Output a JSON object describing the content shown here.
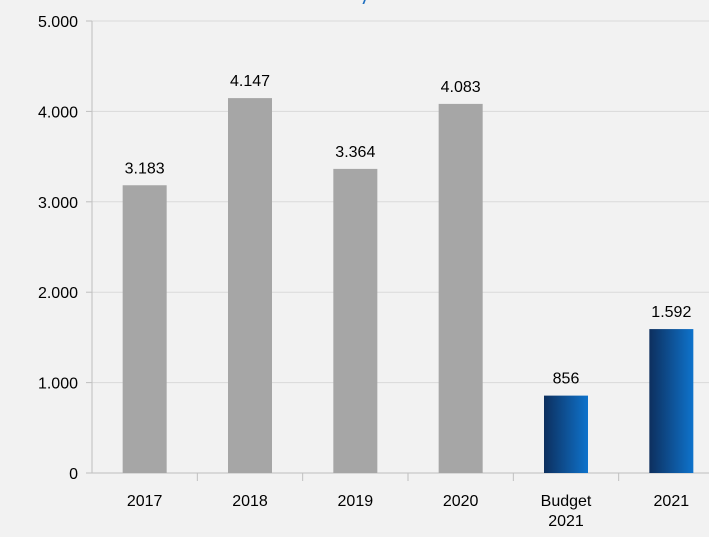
{
  "chart_data": {
    "type": "bar",
    "title": "",
    "title_fragment": "/",
    "xlabel": "",
    "ylabel": "",
    "ylim": [
      0,
      5000
    ],
    "y_ticks": [
      0,
      1000,
      2000,
      3000,
      4000,
      5000
    ],
    "y_tick_labels": [
      "0",
      "1.000",
      "2.000",
      "3.000",
      "4.000",
      "5.000"
    ],
    "grid": true,
    "categories": [
      [
        "2017"
      ],
      [
        "2018"
      ],
      [
        "2019"
      ],
      [
        "2020"
      ],
      [
        "Budget",
        "2021"
      ],
      [
        "2021"
      ]
    ],
    "values": [
      3183,
      4147,
      3364,
      4083,
      856,
      1592
    ],
    "value_labels": [
      "3.183",
      "4.147",
      "3.364",
      "4.083",
      "856",
      "1.592"
    ],
    "bar_styles": [
      "gray",
      "gray",
      "gray",
      "gray",
      "blue",
      "blue"
    ],
    "colors": {
      "gray": "#a6a6a6",
      "blue_dark": "#0d2f5e",
      "blue_light": "#0e73cc",
      "grid": "#d9d9d9",
      "axis": "#bfbfbf",
      "title": "#1f6fc0"
    }
  }
}
